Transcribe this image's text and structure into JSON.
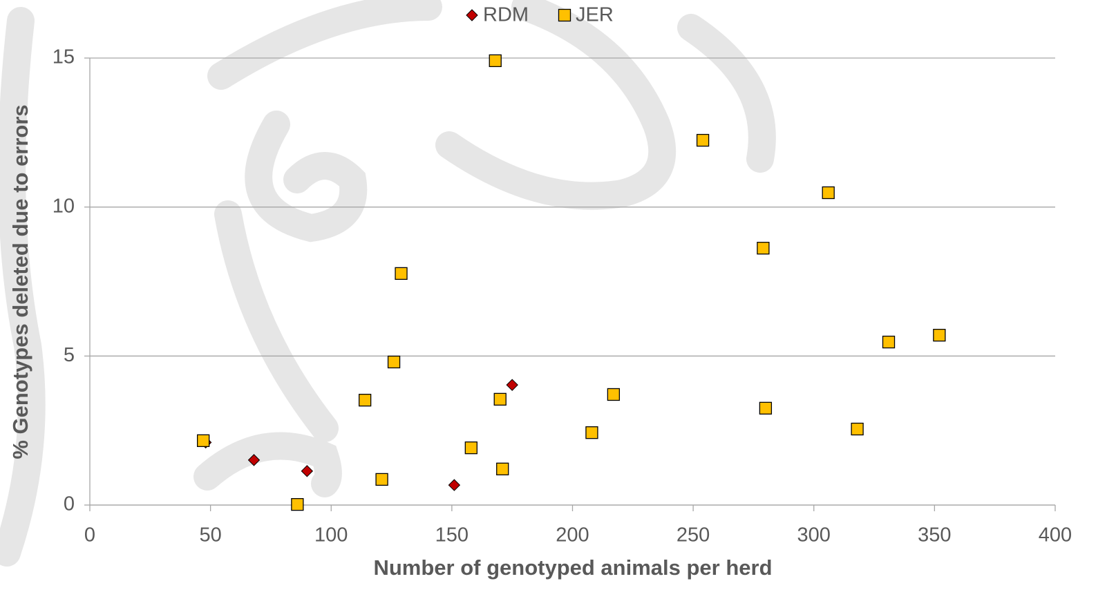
{
  "chart_data": {
    "type": "scatter",
    "x_label": "Number of genotyped animals per herd",
    "y_label": "% Genotypes deleted due to errors",
    "xlim": [
      0,
      400
    ],
    "xticks": [
      0,
      50,
      100,
      150,
      200,
      250,
      300,
      350,
      400
    ],
    "ylim": [
      0,
      15
    ],
    "yticks": [
      0,
      5,
      10,
      15
    ],
    "grid": true,
    "legend": "top",
    "series": [
      {
        "name": "RDM",
        "color": "#c00000",
        "marker": "diamond",
        "x": [
          48,
          68,
          90,
          151,
          175
        ],
        "values": [
          2.1,
          1.51,
          1.14,
          0.67,
          4.03
        ]
      },
      {
        "name": "JER",
        "color": "#ffc000",
        "marker": "square",
        "x": [
          47,
          86,
          114,
          121,
          126,
          129,
          158,
          168,
          170,
          171,
          208,
          217,
          254,
          279,
          280,
          306,
          318,
          331,
          352
        ],
        "values": [
          2.16,
          0.02,
          3.52,
          0.86,
          4.8,
          7.77,
          1.92,
          14.91,
          3.55,
          1.21,
          2.43,
          3.71,
          12.24,
          8.62,
          3.25,
          10.48,
          2.55,
          5.47,
          5.7
        ]
      }
    ]
  }
}
